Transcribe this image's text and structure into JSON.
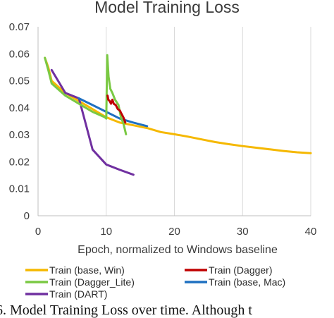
{
  "chart_data": {
    "type": "line",
    "title": "Model Training Loss",
    "xlabel": "Epoch, normalized to Windows baseline",
    "ylabel": "",
    "xlim": [
      0,
      40
    ],
    "ylim": [
      0,
      0.07
    ],
    "xticks": [
      "0",
      "10",
      "20",
      "30",
      "40"
    ],
    "yticks": [
      "0",
      "0.01",
      "0.02",
      "0.03",
      "0.04",
      "0.05",
      "0.06",
      "0.07"
    ],
    "grid": "vertical",
    "legend_position": "bottom",
    "series": [
      {
        "name": "Train (base, Win)",
        "color": "#f5b800",
        "points": [
          [
            1,
            0.0585
          ],
          [
            1.5,
            0.055
          ],
          [
            2,
            0.05
          ],
          [
            4,
            0.0455
          ],
          [
            6,
            0.0425
          ],
          [
            8,
            0.0395
          ],
          [
            10,
            0.0365
          ],
          [
            11,
            0.0355
          ],
          [
            12,
            0.0345
          ],
          [
            14,
            0.0335
          ],
          [
            16,
            0.0325
          ],
          [
            18,
            0.031
          ],
          [
            20,
            0.0302
          ],
          [
            22,
            0.0293
          ],
          [
            24,
            0.0283
          ],
          [
            26,
            0.0273
          ],
          [
            28,
            0.0265
          ],
          [
            30,
            0.0258
          ],
          [
            32,
            0.0252
          ],
          [
            34,
            0.0246
          ],
          [
            36,
            0.024
          ],
          [
            38,
            0.0235
          ],
          [
            40,
            0.0232
          ]
        ]
      },
      {
        "name": "Train (Dagger)",
        "color": "#c00000",
        "points": [
          [
            10.2,
            0.0445
          ],
          [
            10.3,
            0.043
          ],
          [
            10.5,
            0.0425
          ],
          [
            10.7,
            0.0415
          ],
          [
            10.9,
            0.043
          ],
          [
            11.1,
            0.0415
          ],
          [
            11.4,
            0.041
          ],
          [
            11.7,
            0.0395
          ],
          [
            12,
            0.039
          ],
          [
            12.2,
            0.038
          ],
          [
            12.4,
            0.037
          ],
          [
            12.6,
            0.036
          ],
          [
            12.8,
            0.0345
          ]
        ]
      },
      {
        "name": "Train (Dagger_Lite)",
        "color": "#7ac943",
        "points": [
          [
            1,
            0.0585
          ],
          [
            1.5,
            0.054
          ],
          [
            2,
            0.049
          ],
          [
            4,
            0.0445
          ],
          [
            6,
            0.0415
          ],
          [
            8,
            0.0385
          ],
          [
            9.8,
            0.0365
          ],
          [
            10,
            0.036
          ],
          [
            10.15,
            0.0595
          ],
          [
            10.35,
            0.0515
          ],
          [
            10.6,
            0.047
          ],
          [
            10.9,
            0.0455
          ],
          [
            11.3,
            0.043
          ],
          [
            11.8,
            0.041
          ],
          [
            12.2,
            0.036
          ],
          [
            12.5,
            0.0345
          ],
          [
            12.9,
            0.0302
          ]
        ]
      },
      {
        "name": "Train (base, Mac)",
        "color": "#1f70c1",
        "points": [
          [
            6,
            0.0435
          ],
          [
            8,
            0.041
          ],
          [
            10,
            0.0385
          ],
          [
            12,
            0.036
          ],
          [
            14,
            0.0345
          ],
          [
            16,
            0.0332
          ]
        ]
      },
      {
        "name": "Train (DART)",
        "color": "#7030a0",
        "points": [
          [
            2,
            0.054
          ],
          [
            4,
            0.0455
          ],
          [
            6,
            0.0435
          ],
          [
            7,
            0.034
          ],
          [
            8,
            0.0245
          ],
          [
            10,
            0.019
          ],
          [
            12,
            0.017
          ],
          [
            14,
            0.0152
          ]
        ]
      }
    ]
  },
  "caption": "6. Model Training Loss over time. Although t"
}
